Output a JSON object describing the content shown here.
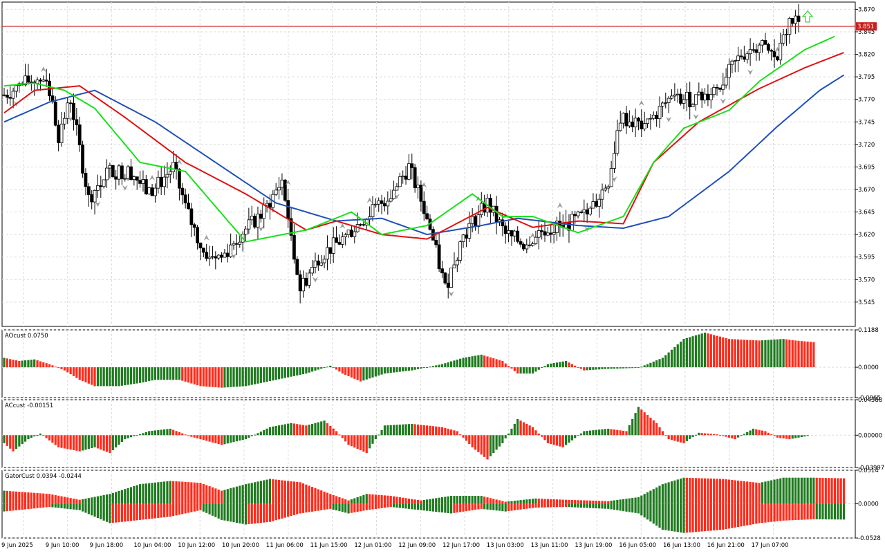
{
  "colors": {
    "up_bar": "#1f7a1f",
    "down_bar": "#ff2a1a",
    "jaw": "#1f4fb8",
    "teeth": "#e01010",
    "lips": "#19e019",
    "price_line": "#c81e1e",
    "fractal": "#9a9a9a",
    "arrow": "#3ad13a"
  },
  "chart_data": [
    {
      "type": "candlestick",
      "title": "",
      "current_price_label": "3.851",
      "current_price": 3.851,
      "ylim": [
        3.518,
        3.878
      ],
      "y_ticks": [
        3.87,
        3.845,
        3.82,
        3.795,
        3.77,
        3.745,
        3.72,
        3.695,
        3.67,
        3.645,
        3.62,
        3.595,
        3.57,
        3.545
      ],
      "y_tick_labels": [
        "3.870",
        "3.845",
        "3.820",
        "3.795",
        "3.770",
        "3.745",
        "3.720",
        "3.695",
        "3.670",
        "3.645",
        "3.620",
        "3.595",
        "3.570",
        "3.545"
      ],
      "series": [
        {
          "name": "",
          "type": "ohlc",
          "anchors": [
            [
              0,
              3.775
            ],
            [
              8,
              3.79
            ],
            [
              14,
              3.795
            ],
            [
              18,
              3.73
            ],
            [
              22,
              3.77
            ],
            [
              28,
              3.66
            ],
            [
              34,
              3.69
            ],
            [
              42,
              3.69
            ],
            [
              48,
              3.665
            ],
            [
              56,
              3.695
            ],
            [
              60,
              3.65
            ],
            [
              66,
              3.6
            ],
            [
              72,
              3.595
            ],
            [
              78,
              3.62
            ],
            [
              86,
              3.645
            ],
            [
              92,
              3.68
            ],
            [
              98,
              3.56
            ],
            [
              104,
              3.595
            ],
            [
              112,
              3.615
            ],
            [
              120,
              3.64
            ],
            [
              128,
              3.665
            ],
            [
              134,
              3.695
            ],
            [
              140,
              3.64
            ],
            [
              146,
              3.56
            ],
            [
              152,
              3.62
            ],
            [
              160,
              3.655
            ],
            [
              166,
              3.62
            ],
            [
              172,
              3.61
            ],
            [
              178,
              3.625
            ],
            [
              186,
              3.63
            ],
            [
              194,
              3.645
            ],
            [
              200,
              3.68
            ],
            [
              204,
              3.75
            ],
            [
              212,
              3.74
            ],
            [
              220,
              3.77
            ],
            [
              230,
              3.77
            ],
            [
              238,
              3.79
            ],
            [
              244,
              3.82
            ],
            [
              250,
              3.83
            ],
            [
              256,
              3.815
            ],
            [
              260,
              3.858
            ],
            [
              263,
              3.855
            ]
          ]
        },
        {
          "name": "",
          "type": "line",
          "role": "jaw",
          "anchors": [
            [
              0,
              3.745
            ],
            [
              15,
              3.767
            ],
            [
              30,
              3.78
            ],
            [
              50,
              3.745
            ],
            [
              70,
              3.7
            ],
            [
              90,
              3.655
            ],
            [
              110,
              3.635
            ],
            [
              125,
              3.638
            ],
            [
              140,
              3.62
            ],
            [
              158,
              3.63
            ],
            [
              170,
              3.638
            ],
            [
              190,
              3.63
            ],
            [
              205,
              3.627
            ],
            [
              220,
              3.64
            ],
            [
              240,
              3.69
            ],
            [
              256,
              3.74
            ],
            [
              270,
              3.78
            ],
            [
              278,
              3.797
            ]
          ]
        },
        {
          "name": "",
          "type": "line",
          "role": "teeth",
          "anchors": [
            [
              0,
              3.755
            ],
            [
              10,
              3.78
            ],
            [
              25,
              3.785
            ],
            [
              40,
              3.75
            ],
            [
              60,
              3.7
            ],
            [
              80,
              3.665
            ],
            [
              100,
              3.625
            ],
            [
              110,
              3.635
            ],
            [
              125,
              3.62
            ],
            [
              140,
              3.615
            ],
            [
              160,
              3.65
            ],
            [
              175,
              3.628
            ],
            [
              190,
              3.635
            ],
            [
              205,
              3.632
            ],
            [
              215,
              3.7
            ],
            [
              230,
              3.745
            ],
            [
              250,
              3.782
            ],
            [
              265,
              3.805
            ],
            [
              278,
              3.822
            ]
          ]
        },
        {
          "name": "",
          "type": "line",
          "role": "lips",
          "anchors": [
            [
              0,
              3.785
            ],
            [
              10,
              3.788
            ],
            [
              20,
              3.78
            ],
            [
              30,
              3.76
            ],
            [
              45,
              3.7
            ],
            [
              60,
              3.69
            ],
            [
              80,
              3.612
            ],
            [
              100,
              3.625
            ],
            [
              115,
              3.645
            ],
            [
              125,
              3.62
            ],
            [
              140,
              3.63
            ],
            [
              155,
              3.665
            ],
            [
              165,
              3.64
            ],
            [
              175,
              3.64
            ],
            [
              190,
              3.622
            ],
            [
              205,
              3.64
            ],
            [
              215,
              3.7
            ],
            [
              225,
              3.738
            ],
            [
              240,
              3.758
            ],
            [
              250,
              3.79
            ],
            [
              265,
              3.825
            ],
            [
              275,
              3.84
            ]
          ]
        }
      ]
    },
    {
      "type": "bar",
      "title": "AOcust 0.0750",
      "ylim": [
        -0.0965,
        0.1188
      ],
      "y_ticks": [
        0.1188,
        0.0,
        -0.0965
      ],
      "y_tick_labels": [
        "0.1188",
        "0.0000",
        "-0.0965"
      ],
      "anchors": [
        [
          0,
          0.03
        ],
        [
          5,
          0.02
        ],
        [
          10,
          0.025
        ],
        [
          15,
          0.01
        ],
        [
          20,
          -0.01
        ],
        [
          25,
          -0.04
        ],
        [
          30,
          -0.06
        ],
        [
          38,
          -0.06
        ],
        [
          45,
          -0.05
        ],
        [
          50,
          -0.04
        ],
        [
          58,
          -0.04
        ],
        [
          65,
          -0.06
        ],
        [
          72,
          -0.065
        ],
        [
          80,
          -0.06
        ],
        [
          90,
          -0.04
        ],
        [
          100,
          -0.02
        ],
        [
          108,
          0.005
        ],
        [
          112,
          -0.02
        ],
        [
          118,
          -0.045
        ],
        [
          126,
          -0.02
        ],
        [
          135,
          -0.01
        ],
        [
          145,
          0.01
        ],
        [
          152,
          0.03
        ],
        [
          158,
          0.04
        ],
        [
          165,
          0.02
        ],
        [
          170,
          -0.02
        ],
        [
          175,
          -0.02
        ],
        [
          180,
          0.01
        ],
        [
          186,
          0.02
        ],
        [
          192,
          -0.01
        ],
        [
          200,
          -0.005
        ],
        [
          210,
          -0.002
        ],
        [
          218,
          0.03
        ],
        [
          225,
          0.09
        ],
        [
          232,
          0.11
        ],
        [
          240,
          0.09
        ],
        [
          250,
          0.085
        ],
        [
          258,
          0.09
        ],
        [
          262,
          0.085
        ],
        [
          268,
          0.08
        ]
      ]
    },
    {
      "type": "bar",
      "title": "ACcust -0.00151",
      "ylim": [
        -0.03997,
        0.04388
      ],
      "y_ticks": [
        0.04388,
        0.0,
        -0.03997
      ],
      "y_tick_labels": [
        "0.04388",
        "0.00000",
        "-0.03997"
      ],
      "anchors": [
        [
          0,
          -0.01
        ],
        [
          3,
          -0.02
        ],
        [
          8,
          -0.005
        ],
        [
          12,
          0.002
        ],
        [
          18,
          -0.015
        ],
        [
          25,
          -0.02
        ],
        [
          30,
          -0.015
        ],
        [
          35,
          -0.022
        ],
        [
          40,
          -0.005
        ],
        [
          48,
          0.005
        ],
        [
          55,
          0.008
        ],
        [
          62,
          -0.002
        ],
        [
          72,
          -0.012
        ],
        [
          80,
          -0.005
        ],
        [
          88,
          0.01
        ],
        [
          95,
          0.015
        ],
        [
          100,
          0.012
        ],
        [
          106,
          0.018
        ],
        [
          110,
          0.005
        ],
        [
          114,
          -0.012
        ],
        [
          120,
          -0.022
        ],
        [
          126,
          0.012
        ],
        [
          135,
          0.014
        ],
        [
          145,
          0.01
        ],
        [
          150,
          0.005
        ],
        [
          155,
          -0.015
        ],
        [
          160,
          -0.03
        ],
        [
          165,
          -0.01
        ],
        [
          170,
          0.02
        ],
        [
          175,
          0.01
        ],
        [
          180,
          -0.01
        ],
        [
          185,
          -0.015
        ],
        [
          192,
          0.005
        ],
        [
          200,
          0.008
        ],
        [
          206,
          0.005
        ],
        [
          210,
          0.035
        ],
        [
          216,
          0.015
        ],
        [
          220,
          -0.005
        ],
        [
          225,
          -0.01
        ],
        [
          230,
          0.003
        ],
        [
          236,
          0.001
        ],
        [
          242,
          -0.005
        ],
        [
          248,
          0.008
        ],
        [
          252,
          0.005
        ],
        [
          256,
          -0.003
        ],
        [
          260,
          -0.005
        ],
        [
          266,
          -0.001
        ]
      ]
    },
    {
      "type": "bar",
      "title": "GatorCust 0.0394 -0.0244",
      "ylim": [
        -0.0528,
        0.0514
      ],
      "y_ticks": [
        0.0514,
        0.0,
        -0.0528
      ],
      "y_tick_labels": [
        "0.0514",
        "0.0000",
        "-0.0528"
      ],
      "upper_anchors": [
        [
          0,
          0.02
        ],
        [
          15,
          0.015
        ],
        [
          25,
          0.006
        ],
        [
          35,
          0.015
        ],
        [
          45,
          0.03
        ],
        [
          55,
          0.035
        ],
        [
          65,
          0.032
        ],
        [
          72,
          0.02
        ],
        [
          80,
          0.03
        ],
        [
          88,
          0.038
        ],
        [
          98,
          0.033
        ],
        [
          108,
          0.015
        ],
        [
          114,
          0.005
        ],
        [
          120,
          0.015
        ],
        [
          128,
          0.012
        ],
        [
          138,
          0.005
        ],
        [
          148,
          0.012
        ],
        [
          158,
          0.012
        ],
        [
          166,
          0.003
        ],
        [
          176,
          0.008
        ],
        [
          186,
          0.006
        ],
        [
          200,
          0.004
        ],
        [
          210,
          0.01
        ],
        [
          218,
          0.03
        ],
        [
          225,
          0.04
        ],
        [
          238,
          0.038
        ],
        [
          250,
          0.032
        ],
        [
          258,
          0.04
        ],
        [
          268,
          0.04
        ],
        [
          278,
          0.039
        ]
      ],
      "lower_anchors": [
        [
          0,
          -0.012
        ],
        [
          15,
          -0.005
        ],
        [
          25,
          -0.01
        ],
        [
          35,
          -0.03
        ],
        [
          45,
          -0.025
        ],
        [
          55,
          -0.02
        ],
        [
          65,
          -0.01
        ],
        [
          72,
          -0.025
        ],
        [
          80,
          -0.032
        ],
        [
          88,
          -0.028
        ],
        [
          98,
          -0.015
        ],
        [
          108,
          -0.008
        ],
        [
          114,
          -0.015
        ],
        [
          120,
          -0.01
        ],
        [
          128,
          -0.005
        ],
        [
          138,
          -0.01
        ],
        [
          148,
          -0.015
        ],
        [
          158,
          -0.008
        ],
        [
          166,
          -0.012
        ],
        [
          176,
          -0.006
        ],
        [
          186,
          -0.005
        ],
        [
          200,
          -0.008
        ],
        [
          210,
          -0.015
        ],
        [
          218,
          -0.04
        ],
        [
          225,
          -0.045
        ],
        [
          238,
          -0.04
        ],
        [
          250,
          -0.03
        ],
        [
          258,
          -0.026
        ],
        [
          268,
          -0.024
        ],
        [
          278,
          -0.0244
        ]
      ]
    }
  ],
  "x_axis": {
    "labels": [
      "9 Jun 2025",
      "9 Jun 10:00",
      "9 Jun 18:00",
      "10 Jun 04:00",
      "10 Jun 12:00",
      "10 Jun 20:00",
      "11 Jun 06:00",
      "11 Jun 15:00",
      "12 Jun 01:00",
      "12 Jun 09:00",
      "12 Jun 17:00",
      "13 Jun 03:00",
      "13 Jun 11:00",
      "13 Jun 19:00",
      "16 Jun 05:00",
      "16 Jun 13:00",
      "16 Jun 21:00",
      "17 Jun 07:00"
    ]
  }
}
